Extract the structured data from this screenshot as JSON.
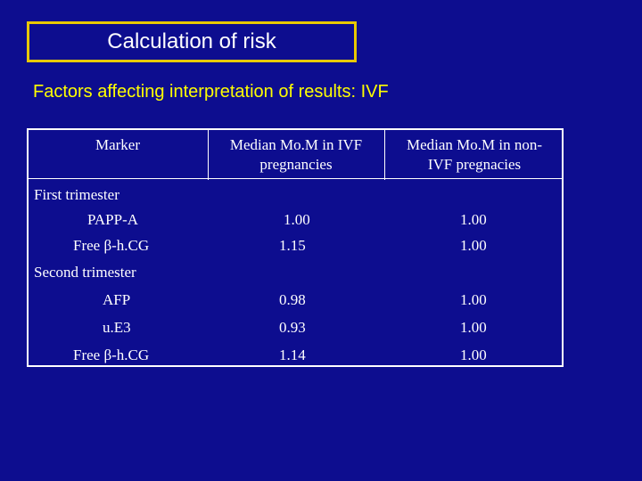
{
  "slide": {
    "title": "Calculation of risk",
    "subtitle": "Factors affecting interpretation of results: IVF"
  },
  "table": {
    "headers": [
      "Marker",
      "Median Mo.M in IVF pregnancies",
      "Median Mo.M in non-IVF pregnacies"
    ],
    "header_lines": {
      "col2_line1": "Median Mo.M in IVF",
      "col2_line2": "pregnancies",
      "col3_line1": "Median Mo.M in non-",
      "col3_line2": "IVF pregnacies"
    },
    "sections": {
      "first": "First trimester",
      "second": "Second trimester"
    },
    "rows": [
      {
        "marker": "PAPP-A",
        "ivf": "1.00",
        "non_ivf": "1.00"
      },
      {
        "marker": "Free β-h.CG",
        "ivf": "1.15",
        "non_ivf": "1.00"
      },
      {
        "marker": "AFP",
        "ivf": "0.98",
        "non_ivf": "1.00"
      },
      {
        "marker": "u.E3",
        "ivf": "0.93",
        "non_ivf": "1.00"
      },
      {
        "marker": "Free β-h.CG",
        "ivf": "1.14",
        "non_ivf": "1.00"
      }
    ]
  },
  "colors": {
    "background": "#0d0d8f",
    "title_border": "#e8c800",
    "subtitle": "#ffff00",
    "text": "#ffffff"
  }
}
